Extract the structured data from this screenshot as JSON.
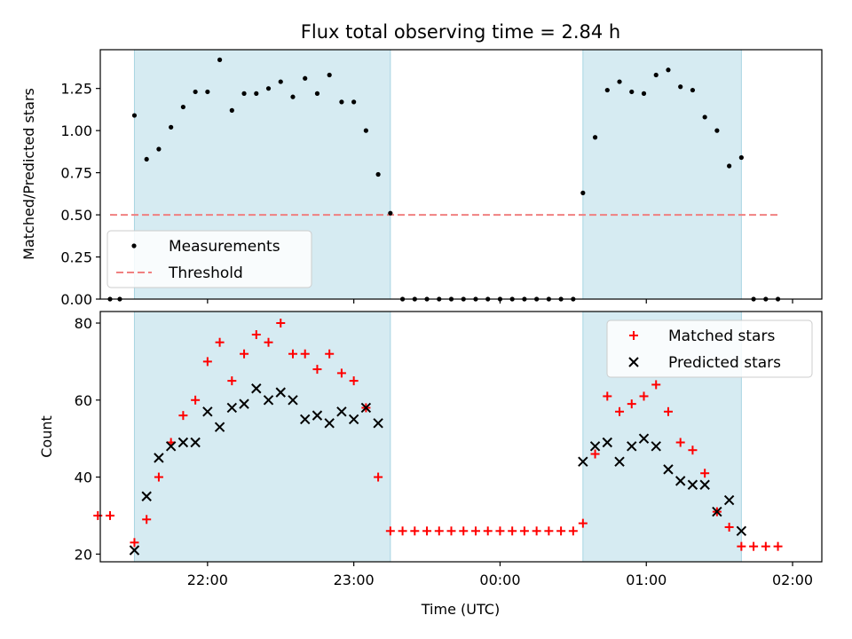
{
  "chart_data": [
    {
      "type": "scatter",
      "title": "Flux total observing time = 2.84 h",
      "xlabel": "",
      "ylabel": "Matched/Predicted stars",
      "xlim": [
        "21:16",
        "02:12"
      ],
      "ylim": [
        0,
        1.48
      ],
      "yticks": [
        "0.00",
        "0.25",
        "0.50",
        "0.75",
        "1.00",
        "1.25"
      ],
      "grid": false,
      "legend": {
        "placement": "lower-left",
        "entries": [
          "Measurements",
          "Threshold"
        ]
      },
      "shaded_ranges": [
        [
          "21:30",
          "23:15"
        ],
        [
          "00:34",
          "01:39"
        ]
      ],
      "threshold": {
        "name": "Threshold",
        "value": 0.5,
        "x_range": [
          "21:20",
          "01:55"
        ],
        "color": "#f08080"
      },
      "series": [
        {
          "name": "Measurements",
          "color": "#000000",
          "x": [
            "21:20",
            "21:24",
            "21:30",
            "21:35",
            "21:40",
            "21:45",
            "21:50",
            "21:55",
            "22:00",
            "22:05",
            "22:10",
            "22:15",
            "22:20",
            "22:25",
            "22:30",
            "22:35",
            "22:40",
            "22:45",
            "22:50",
            "22:55",
            "23:00",
            "23:05",
            "23:10",
            "23:15",
            "23:20",
            "23:25",
            "23:30",
            "23:35",
            "23:40",
            "23:45",
            "23:50",
            "23:55",
            "00:00",
            "00:05",
            "00:10",
            "00:15",
            "00:20",
            "00:25",
            "00:30",
            "00:34",
            "00:39",
            "00:44",
            "00:49",
            "00:54",
            "00:59",
            "01:04",
            "01:09",
            "01:14",
            "01:19",
            "01:24",
            "01:29",
            "01:34",
            "01:39",
            "01:44",
            "01:49",
            "01:54"
          ],
          "y": [
            0,
            0,
            1.09,
            0.83,
            0.89,
            1.02,
            1.14,
            1.23,
            1.23,
            1.42,
            1.12,
            1.22,
            1.22,
            1.25,
            1.29,
            1.2,
            1.31,
            1.22,
            1.33,
            1.17,
            1.17,
            1.0,
            0.74,
            0.51,
            0,
            0,
            0,
            0,
            0,
            0,
            0,
            0,
            0,
            0,
            0,
            0,
            0,
            0,
            0,
            0.63,
            0.96,
            1.24,
            1.29,
            1.23,
            1.22,
            1.33,
            1.36,
            1.26,
            1.24,
            1.08,
            1.0,
            0.79,
            0.84,
            0,
            0,
            0
          ]
        }
      ]
    },
    {
      "type": "scatter",
      "title": "",
      "xlabel": "Time (UTC)",
      "ylabel": "Count",
      "xlim": [
        "21:16",
        "02:12"
      ],
      "ylim": [
        18,
        83
      ],
      "yticks": [
        "20",
        "40",
        "60",
        "80"
      ],
      "xticks": [
        "22:00",
        "23:00",
        "00:00",
        "01:00",
        "02:00"
      ],
      "grid": false,
      "legend": {
        "placement": "upper-right",
        "entries": [
          "Matched stars",
          "Predicted stars"
        ]
      },
      "shaded_ranges": [
        [
          "21:30",
          "23:15"
        ],
        [
          "00:34",
          "01:39"
        ]
      ],
      "series": [
        {
          "name": "Matched stars",
          "color": "#ff0000",
          "marker": "plus",
          "x": [
            "21:15",
            "21:20",
            "21:30",
            "21:35",
            "21:40",
            "21:45",
            "21:50",
            "21:55",
            "22:00",
            "22:05",
            "22:10",
            "22:15",
            "22:20",
            "22:25",
            "22:30",
            "22:35",
            "22:40",
            "22:45",
            "22:50",
            "22:55",
            "23:00",
            "23:05",
            "23:10",
            "23:15",
            "23:20",
            "23:25",
            "23:30",
            "23:35",
            "23:40",
            "23:45",
            "23:50",
            "23:55",
            "00:00",
            "00:05",
            "00:10",
            "00:15",
            "00:20",
            "00:25",
            "00:30",
            "00:34",
            "00:39",
            "00:44",
            "00:49",
            "00:54",
            "00:59",
            "01:04",
            "01:09",
            "01:14",
            "01:19",
            "01:24",
            "01:29",
            "01:34",
            "01:39",
            "01:44",
            "01:49",
            "01:54"
          ],
          "y": [
            30,
            30,
            23,
            29,
            40,
            49,
            56,
            60,
            70,
            75,
            65,
            72,
            77,
            75,
            80,
            72,
            72,
            68,
            72,
            67,
            65,
            58,
            40,
            26,
            26,
            26,
            26,
            26,
            26,
            26,
            26,
            26,
            26,
            26,
            26,
            26,
            26,
            26,
            26,
            28,
            46,
            61,
            57,
            59,
            61,
            64,
            57,
            49,
            47,
            41,
            31,
            27,
            22,
            22,
            22,
            22
          ]
        },
        {
          "name": "Predicted stars",
          "color": "#000000",
          "marker": "x",
          "x": [
            "21:30",
            "21:35",
            "21:40",
            "21:45",
            "21:50",
            "21:55",
            "22:00",
            "22:05",
            "22:10",
            "22:15",
            "22:20",
            "22:25",
            "22:30",
            "22:35",
            "22:40",
            "22:45",
            "22:50",
            "22:55",
            "23:00",
            "23:05",
            "23:10",
            "00:34",
            "00:39",
            "00:44",
            "00:49",
            "00:54",
            "00:59",
            "01:04",
            "01:09",
            "01:14",
            "01:19",
            "01:24",
            "01:29",
            "01:34",
            "01:39"
          ],
          "y": [
            21,
            35,
            45,
            48,
            49,
            49,
            57,
            53,
            58,
            59,
            63,
            60,
            62,
            60,
            55,
            56,
            54,
            57,
            55,
            58,
            54,
            44,
            48,
            49,
            44,
            48,
            50,
            48,
            42,
            39,
            38,
            38,
            31,
            34,
            26
          ]
        }
      ]
    }
  ]
}
